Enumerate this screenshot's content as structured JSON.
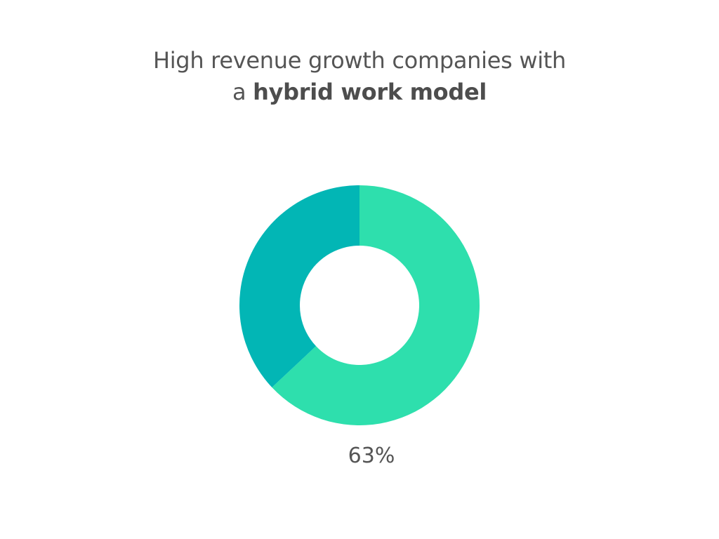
{
  "title": {
    "line1": "High revenue growth companies with",
    "line2_prefix": "a ",
    "line2_bold": "hybrid work model"
  },
  "chart_data": {
    "type": "pie",
    "variant": "donut",
    "title": "High revenue growth companies with a hybrid work model",
    "slices": [
      {
        "label": "",
        "value": 63,
        "color": "#2edfad"
      },
      {
        "label": "",
        "value": 37,
        "color": "#02b6b5"
      }
    ],
    "data_labels": [
      "63%"
    ],
    "legend": "none"
  },
  "value_label": "63%"
}
